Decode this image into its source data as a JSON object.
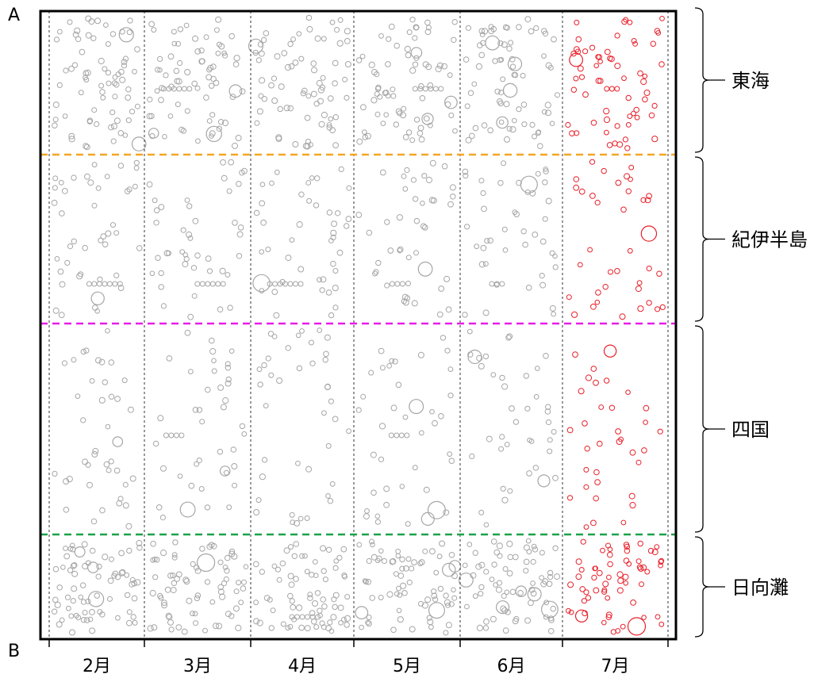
{
  "chart_data": {
    "type": "scatter",
    "title": "",
    "xlabel": "",
    "ylabel": "",
    "corner_labels": {
      "top": "A",
      "bottom": "B"
    },
    "months": [
      "2月",
      "3月",
      "4月",
      "5月",
      "6月",
      "7月"
    ],
    "regions": [
      {
        "name": "東海",
        "boundary_color": "#f5a623"
      },
      {
        "name": "紀伊半島",
        "boundary_color": "#e81ce8"
      },
      {
        "name": "四国",
        "boundary_color": "#1aa34a"
      },
      {
        "name": "日向灘",
        "boundary_color": ""
      }
    ],
    "highlight_month": "7月",
    "colors": {
      "past_events": "#a6a6a6",
      "highlight_events": "#e8202a"
    }
  }
}
